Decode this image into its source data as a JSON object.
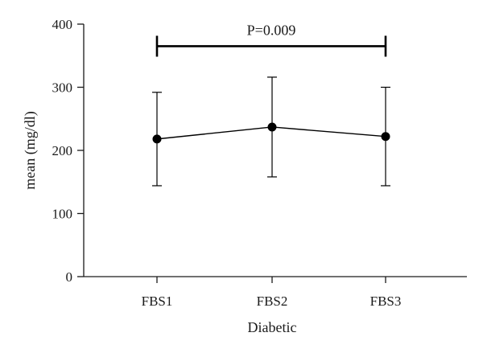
{
  "chart_data": {
    "type": "line",
    "categories": [
      "FBS1",
      "FBS2",
      "FBS3"
    ],
    "series": [
      {
        "values": [
          218,
          237,
          222
        ],
        "error_upper": [
          292,
          316,
          300
        ],
        "error_lower": [
          144,
          158,
          144
        ]
      }
    ],
    "xlabel": "Diabetic",
    "ylabel": "mean (mg/dl)",
    "ylim": [
      0,
      400
    ],
    "yticks": [
      0,
      100,
      200,
      300,
      400
    ],
    "annotation": {
      "text": "P=0.009",
      "from_category": "FBS1",
      "to_category": "FBS3",
      "y": 365
    },
    "grid": false,
    "legend": "none",
    "color": "#000000"
  }
}
